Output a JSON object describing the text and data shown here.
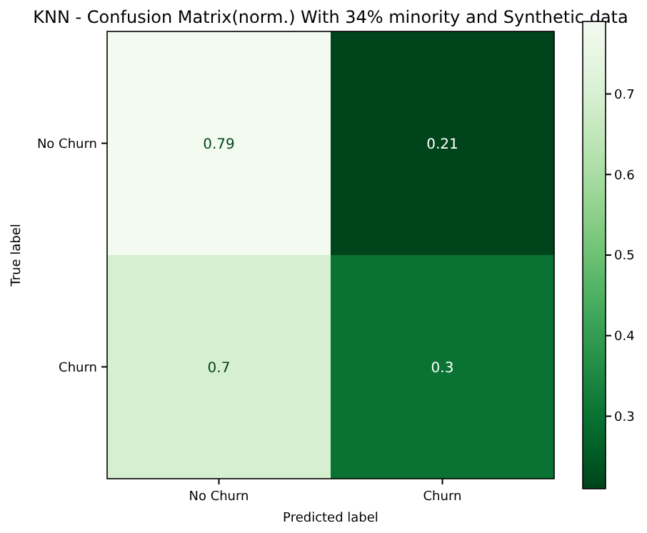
{
  "chart_data": {
    "type": "heatmap",
    "title": "KNN - Confusion Matrix(norm.) With 34% minority and Synthetic data",
    "xlabel": "Predicted label",
    "ylabel": "True label",
    "categories": [
      "No Churn",
      "Churn"
    ],
    "y_categories": [
      "No Churn",
      "Churn"
    ],
    "cells": [
      [
        0.79,
        0.21
      ],
      [
        0.7,
        0.3
      ]
    ],
    "clim": [
      0.21,
      0.79
    ],
    "cticks": [
      0.3,
      0.4,
      0.5,
      0.6,
      0.7
    ],
    "data_labels": true,
    "grid": false
  }
}
